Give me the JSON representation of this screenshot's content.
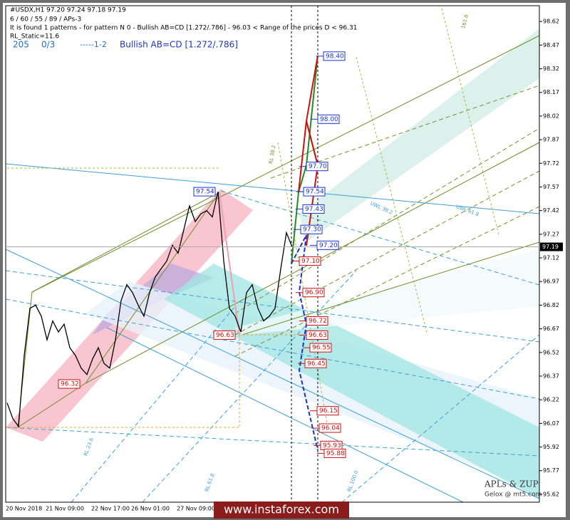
{
  "chart_data": {
    "type": "line",
    "title": "#USDX,H1  97.20 97.24 97.18 97.19",
    "header_lines": [
      "6 / 60 / 55 / 89 / APs-3",
      "It is found 1 patterns  -  for pattern N 0 - Bullish AB=CD [1.272/.786] - 96.03 < Range of the prices D < 96.31",
      "RL_Static=11.6"
    ],
    "info_row": [
      "205",
      "0/3",
      "-----1-2",
      "Bullish AB=CD [1.272/.786]"
    ],
    "categories": [
      "20 Nov 2018",
      null,
      null,
      null,
      null,
      null,
      null,
      "21 Nov 09:00",
      null,
      null,
      null,
      null,
      null,
      null,
      null,
      "22 Nov 17:00",
      null,
      null,
      null,
      null,
      null,
      null,
      "26 Nov 01:00",
      null,
      null,
      null,
      null,
      null,
      null,
      null,
      "27 Nov 09:00",
      null,
      null,
      null,
      null,
      null,
      null,
      null,
      null,
      null,
      null,
      null,
      null,
      null,
      null,
      null,
      null,
      null,
      null,
      null,
      null
    ],
    "series": [
      {
        "name": "USDX",
        "color": "#000000",
        "values": [
          96.2,
          96.1,
          96.05,
          96.5,
          96.8,
          96.82,
          96.75,
          96.6,
          96.72,
          96.65,
          96.7,
          96.55,
          96.5,
          96.42,
          96.38,
          96.48,
          96.55,
          96.45,
          96.42,
          96.6,
          96.85,
          96.95,
          96.9,
          96.82,
          96.75,
          96.9,
          97.0,
          97.05,
          97.1,
          97.2,
          97.15,
          97.3,
          97.45,
          97.35,
          97.4,
          97.42,
          97.38,
          97.54,
          97.1,
          96.8,
          96.75,
          96.65,
          96.9,
          96.95,
          96.8,
          96.72,
          96.75,
          96.8,
          97.05,
          97.28,
          97.19
        ]
      }
    ],
    "last_price": 97.19,
    "ylim": [
      95.57,
      98.72
    ],
    "yticks": [
      95.62,
      95.77,
      95.92,
      96.07,
      96.22,
      96.37,
      96.52,
      96.67,
      96.82,
      96.97,
      97.12,
      97.27,
      97.42,
      97.57,
      97.72,
      97.87,
      98.02,
      98.17,
      98.32,
      98.47,
      98.62
    ],
    "pattern_points": [
      {
        "value": 97.54,
        "label": "97.54",
        "color": "#1a33cc"
      },
      {
        "value": 96.63,
        "label": "96.63",
        "color": "#d01010"
      },
      {
        "value": 96.32,
        "label": "96.32",
        "color": "#d01010"
      }
    ],
    "levels": [
      {
        "value": 98.4,
        "label": "98.40",
        "color": "#1a33cc"
      },
      {
        "value": 98.0,
        "label": "98.00",
        "color": "#1a33cc"
      },
      {
        "value": 97.7,
        "label": "97.70",
        "color": "#1a33cc"
      },
      {
        "value": 97.54,
        "label": "97.54",
        "color": "#1a33cc"
      },
      {
        "value": 97.43,
        "label": "97.43",
        "color": "#1a33cc"
      },
      {
        "value": 97.3,
        "label": "97.30",
        "color": "#1a33cc"
      },
      {
        "value": 97.2,
        "label": "97.20",
        "color": "#1a33cc"
      },
      {
        "value": 97.1,
        "label": "97.10",
        "color": "#d01010"
      },
      {
        "value": 96.9,
        "label": "96.90",
        "color": "#d01010"
      },
      {
        "value": 96.72,
        "label": "96.72",
        "color": "#d01010"
      },
      {
        "value": 96.63,
        "label": "96.63",
        "color": "#d01010"
      },
      {
        "value": 96.55,
        "label": "96.55",
        "color": "#d01010"
      },
      {
        "value": 96.45,
        "label": "96.45",
        "color": "#d01010"
      },
      {
        "value": 96.15,
        "label": "96.15",
        "color": "#d01010"
      },
      {
        "value": 96.04,
        "label": "96.04",
        "color": "#d01010"
      },
      {
        "value": 95.93,
        "label": "95.93",
        "color": "#d01010"
      },
      {
        "value": 95.88,
        "label": "95.88",
        "color": "#d01010"
      }
    ],
    "annotations": [
      "RL 100.0",
      "RL 38.2",
      "RL 23.6",
      "RL 61.8",
      "UWL 38.2",
      "UWL 61.8",
      "161.8"
    ],
    "brand": "APLs & ZUP",
    "brand_sub": "Gelox @ mt5.com",
    "watermark": "www.instaforex.com"
  }
}
